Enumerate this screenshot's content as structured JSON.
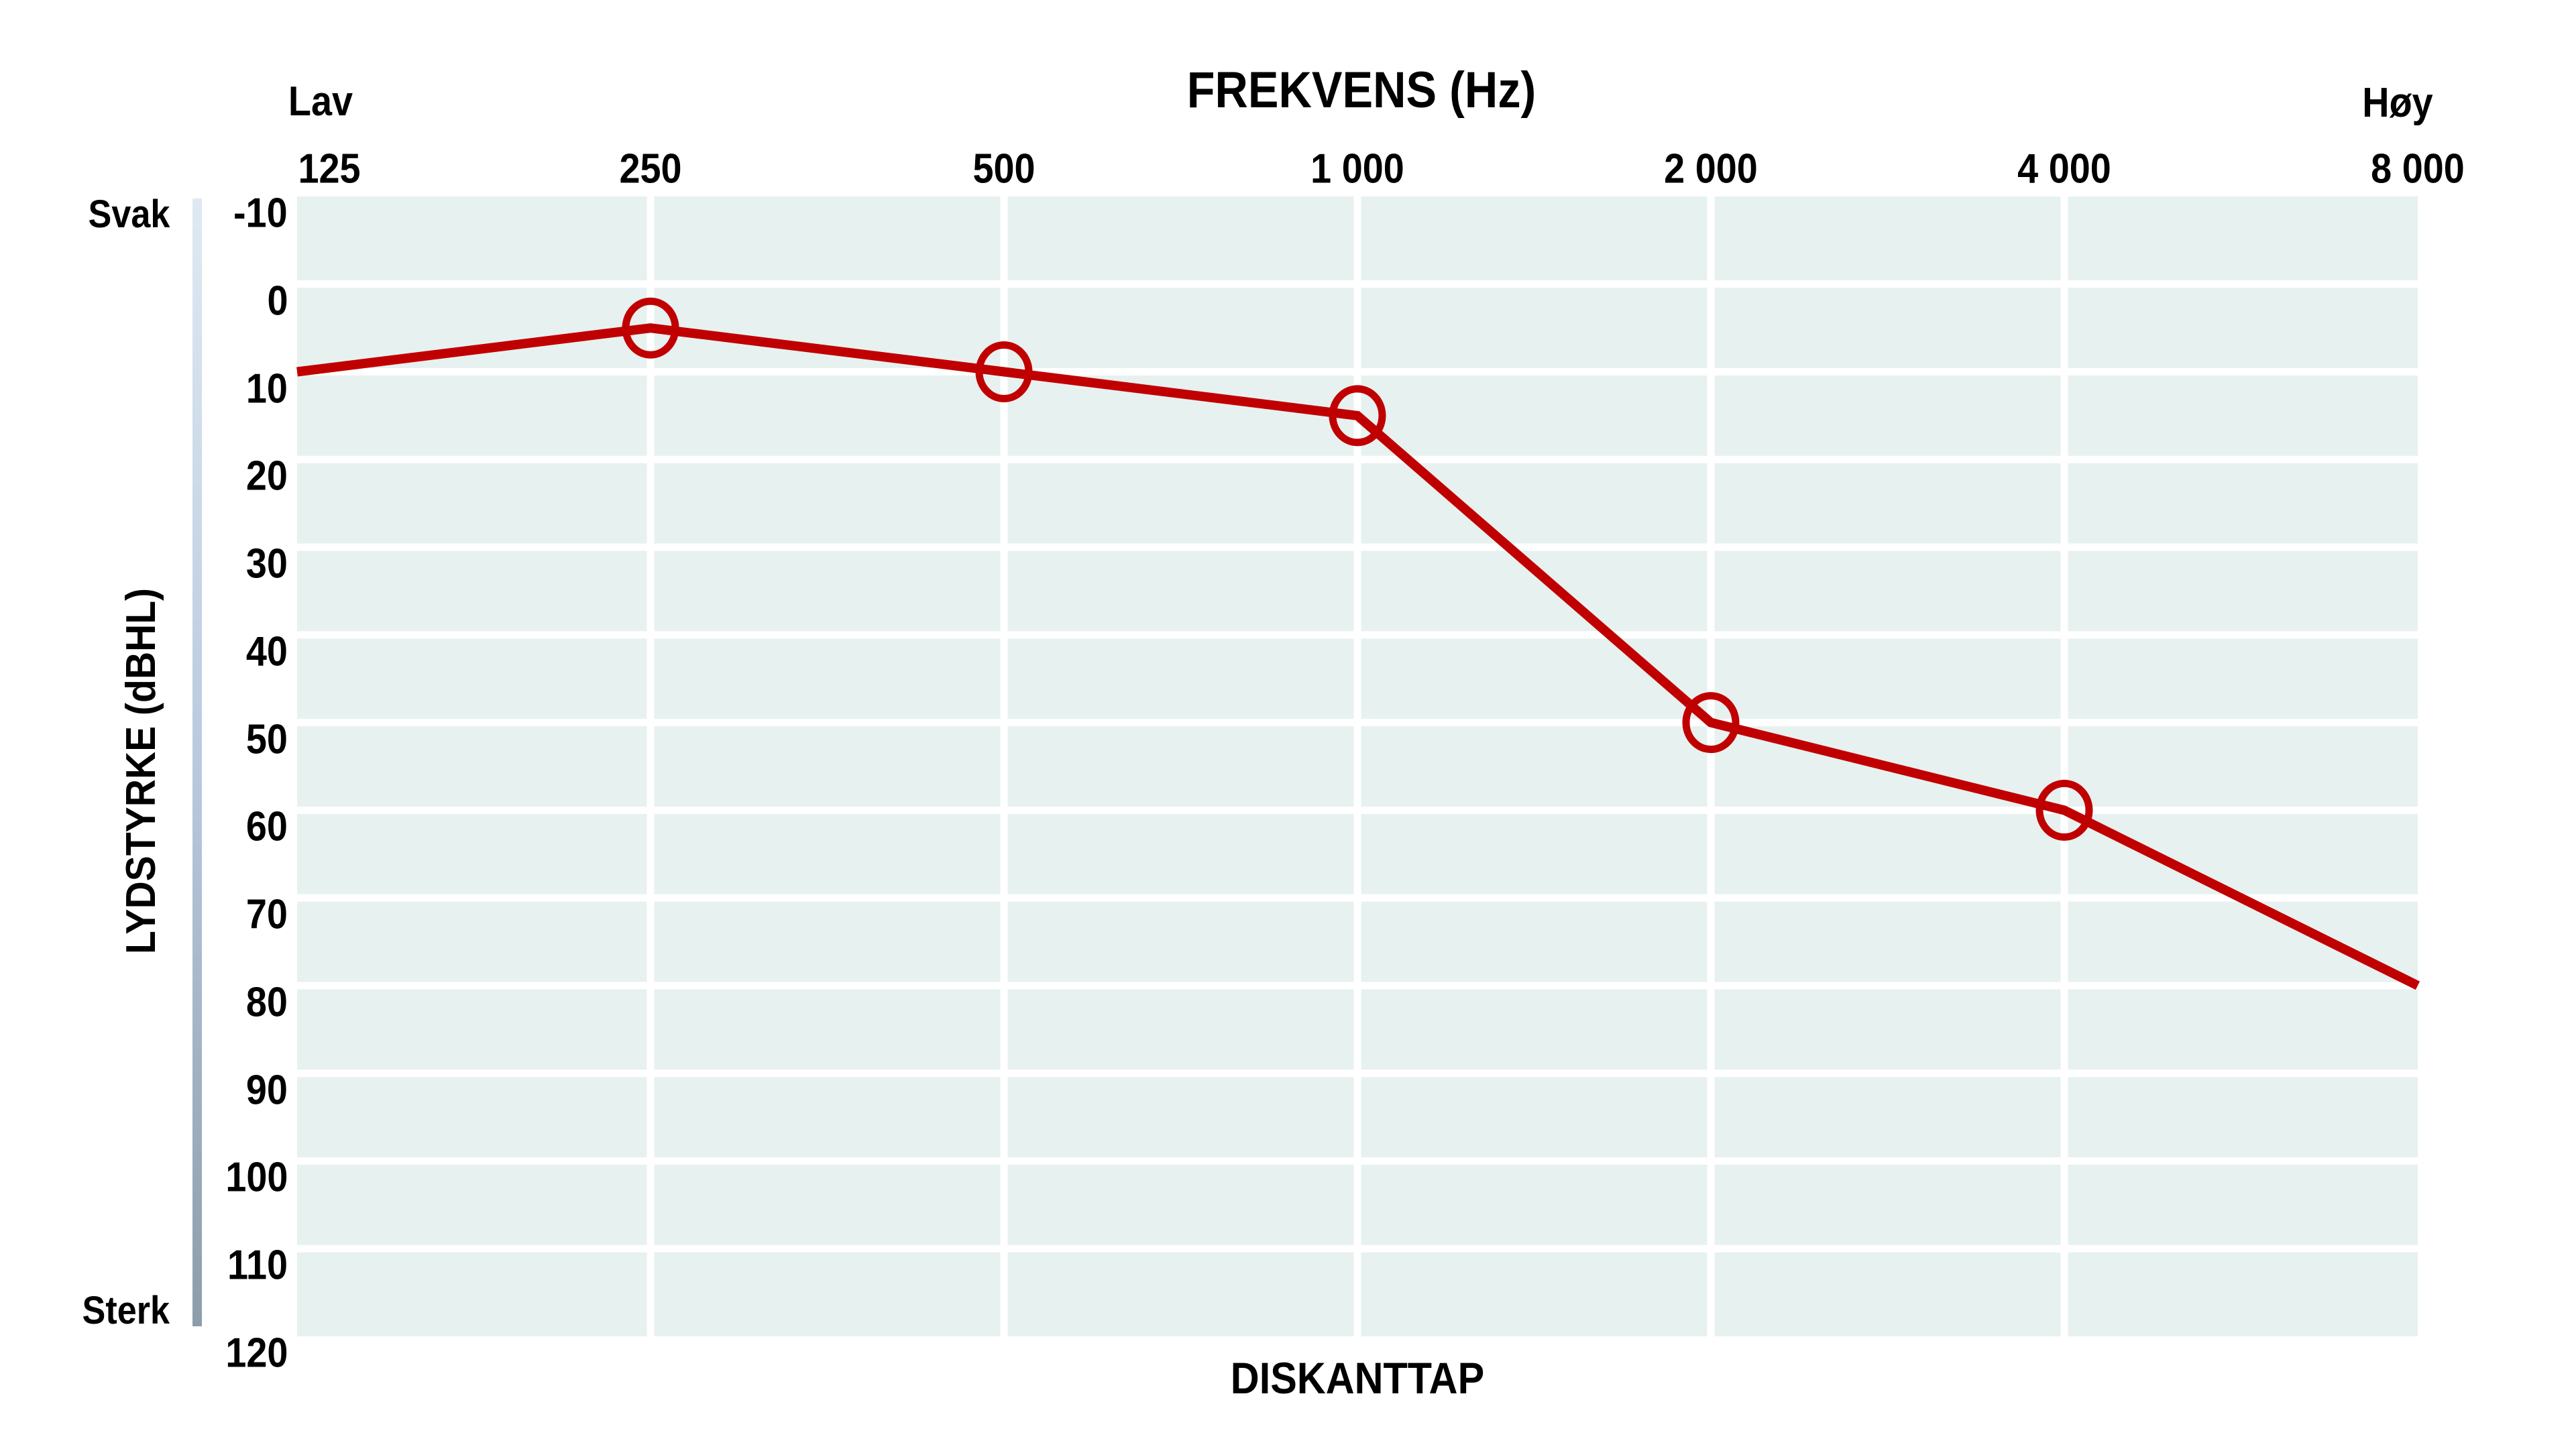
{
  "chart_data": {
    "type": "line",
    "title": "FREKVENS (Hz)",
    "xlabel": "FREKVENS (Hz)",
    "ylabel": "LYDSTYRKE (dBHL)",
    "caption": "DISKANTTAP",
    "annotations": {
      "x_left": "Lav",
      "x_right": "Høy",
      "y_top": "Svak",
      "y_bottom": "Sterk"
    },
    "x_scale": "log2-octaves",
    "x_hz": [
      125,
      250,
      500,
      1000,
      2000,
      4000,
      8000
    ],
    "x_tick_labels": [
      "125",
      "250",
      "500",
      "1 000",
      "2 000",
      "4 000",
      "8 000"
    ],
    "ylim": [
      -10,
      120
    ],
    "y_tick_step": 10,
    "y_tick_labels": [
      "-10",
      "0",
      "10",
      "20",
      "30",
      "40",
      "50",
      "60",
      "70",
      "80",
      "90",
      "100",
      "110",
      "120"
    ],
    "grid": "on",
    "legend": "none",
    "series": [
      {
        "values_db": [
          10,
          5,
          10,
          15,
          50,
          60,
          80
        ],
        "marker": "open-circle",
        "markers_at_hz": [
          250,
          500,
          1000,
          2000,
          4000
        ],
        "color": "#c00000"
      }
    ]
  },
  "colors": {
    "line": "#c00000",
    "plot_bg": "#e7f1f0",
    "grid": "#ffffff",
    "text": "#000000",
    "bar_top": "#dfe9f3",
    "bar_mid": "#b9cadf",
    "bar_bottom": "#8c9dab"
  }
}
